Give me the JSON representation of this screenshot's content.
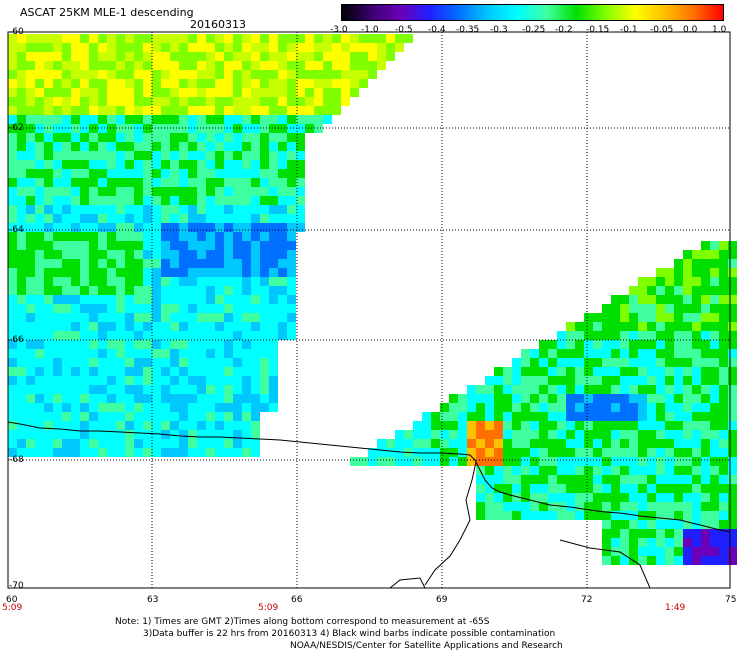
{
  "header": {
    "title": "ASCAT 25KM MLE-1 descending",
    "date": "20160313"
  },
  "colorbar": {
    "labels": [
      "-3.0",
      "-1.0",
      "-0.5",
      "-0.4",
      "-0.35",
      "-0.3",
      "-0.25",
      "-0.2",
      "-0.15",
      "-0.1",
      "-0.05",
      "0.0",
      "1.0"
    ],
    "colors": [
      "#000000",
      "#3a0070",
      "#6a00b8",
      "#2020ff",
      "#0070ff",
      "#00c8ff",
      "#00ffff",
      "#40ffa0",
      "#00e000",
      "#80ff00",
      "#ffff00",
      "#ffc000",
      "#ff7000",
      "#ff0000"
    ]
  },
  "axes": {
    "lat_labels": [
      "-60",
      "-62",
      "-64",
      "-66",
      "-68",
      "-70"
    ],
    "lon_labels": [
      "60",
      "63",
      "66",
      "69",
      "72",
      "75"
    ],
    "times": [
      "5:09",
      "5:09",
      "1:49"
    ]
  },
  "notes": {
    "line1": "Note: 1) Times are GMT 2)Times along bottom correspond to measurement at -65S",
    "line2": "3)Data buffer is 22 hrs from 20160313 4) Black wind barbs indicate possible contamination",
    "line3": "NOAA/NESDIS/Center for Satellite Applications and Research"
  }
}
